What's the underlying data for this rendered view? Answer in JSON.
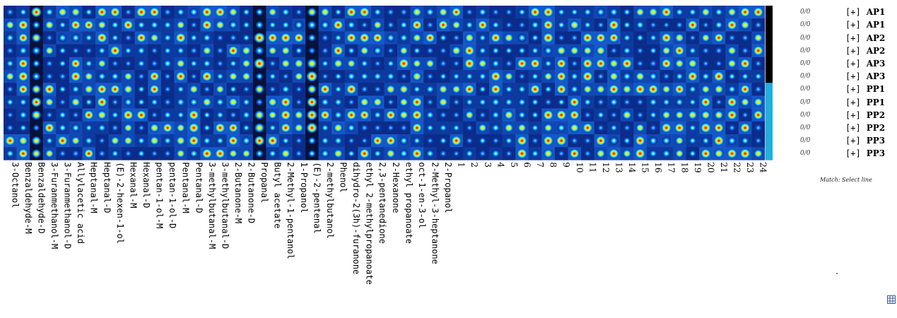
{
  "colors": {
    "scale_low": "#000000",
    "scale_mid": "#1658c8",
    "scale_high": "#b4001e",
    "sample_group_ap": "#000000",
    "sample_group_pp": "#1fb0de"
  },
  "chart_data": {
    "type": "heatmap",
    "color_scale": "jet (dark blue = low intensity, red = high intensity)",
    "columns": [
      "3-Octanol",
      "Benzaldehyde-M",
      "Benzaldehyde-D",
      "3-Furanmethanol-M",
      "3-Furanmethanol-D",
      "Allylacetic acid",
      "Heptanal-M",
      "Heptanal-D",
      "(E)-2-hexen-1-ol",
      "Hexanal-M",
      "Hexanal-D",
      "pentan-1-ol-M",
      "pentan-1-ol-D",
      "Pentanal-M",
      "Pentanal-D",
      "3-methylbutanal-M",
      "3-methylbutanal-D",
      "2-Butanone-M",
      "2-Butanone-D",
      "Propanal",
      "Butyl acetate",
      "2-Methyl-1-pentanol",
      "1-Propanol",
      "(E)-2-pentenal",
      "2-methylbutanol",
      "Phenol",
      "dihydro-2(3h)-furanone",
      "ethyl 2-methylpropanoate",
      "2,3-pentanedione",
      "2-Hexanone",
      "ethyl propanoate",
      "oct-1-en-3-ol",
      "2-Methyl-3-heptanone",
      "2-Propanol",
      "1",
      "2",
      "3",
      "4",
      "5",
      "6",
      "7",
      "8",
      "9",
      "10",
      "11",
      "12",
      "13",
      "14",
      "15",
      "16",
      "17",
      "18",
      "19",
      "20",
      "21",
      "22",
      "23",
      "24"
    ],
    "rows": [
      {
        "sample": "AP1",
        "group": "AP",
        "ratio": "0/0",
        "action": "[+]"
      },
      {
        "sample": "AP1",
        "group": "AP",
        "ratio": "0/0",
        "action": "[+]"
      },
      {
        "sample": "AP2",
        "group": "AP",
        "ratio": "0/0",
        "action": "[+]"
      },
      {
        "sample": "AP2",
        "group": "AP",
        "ratio": "0/0",
        "action": "[+]"
      },
      {
        "sample": "AP3",
        "group": "AP",
        "ratio": "0/0",
        "action": "[+]"
      },
      {
        "sample": "AP3",
        "group": "AP",
        "ratio": "0/0",
        "action": "[+]"
      },
      {
        "sample": "PP1",
        "group": "PP",
        "ratio": "0/0",
        "action": "[+]"
      },
      {
        "sample": "PP1",
        "group": "PP",
        "ratio": "0/0",
        "action": "[+]"
      },
      {
        "sample": "PP2",
        "group": "PP",
        "ratio": "0/0",
        "action": "[+]"
      },
      {
        "sample": "PP2",
        "group": "PP",
        "ratio": "0/0",
        "action": "[+]"
      },
      {
        "sample": "PP3",
        "group": "PP",
        "ratio": "0/0",
        "action": "[+]"
      },
      {
        "sample": "PP3",
        "group": "PP",
        "ratio": "0/0",
        "action": "[+]"
      }
    ]
  },
  "match_text": "Match: Select line",
  "grid_icon": "grid-table-icon"
}
